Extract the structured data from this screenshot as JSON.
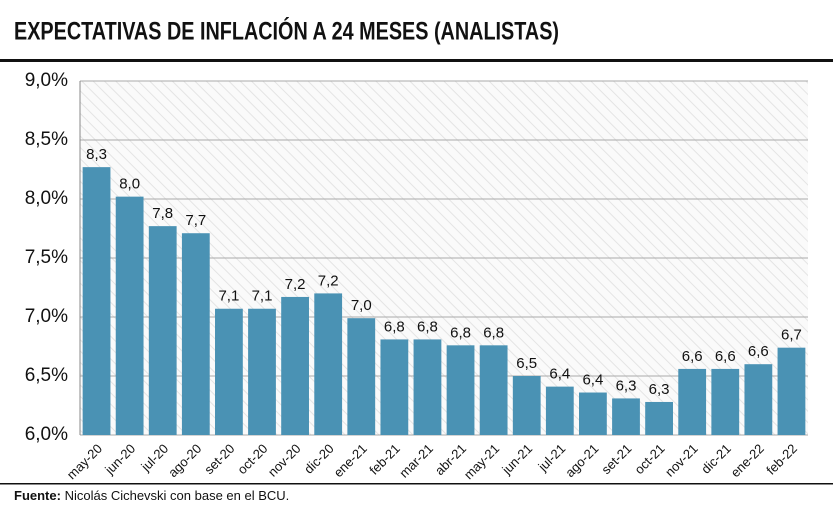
{
  "chart_data": {
    "type": "bar",
    "title": "EXPECTATIVAS DE INFLACIÓN A 24 MESES (ANALISTAS)",
    "categories": [
      "may-20",
      "jun-20",
      "jul-20",
      "ago-20",
      "set-20",
      "oct-20",
      "nov-20",
      "dic-20",
      "ene-21",
      "feb-21",
      "mar-21",
      "abr-21",
      "may-21",
      "jun-21",
      "jul-21",
      "ago-21",
      "set-21",
      "oct-21",
      "nov-21",
      "dic-21",
      "ene-22",
      "feb-22"
    ],
    "values": [
      8.27,
      8.02,
      7.77,
      7.71,
      7.07,
      7.07,
      7.17,
      7.2,
      6.99,
      6.81,
      6.81,
      6.76,
      6.76,
      6.5,
      6.41,
      6.36,
      6.31,
      6.28,
      6.56,
      6.56,
      6.6,
      6.74
    ],
    "value_labels": [
      "8,3",
      "8,0",
      "7,8",
      "7,7",
      "7,1",
      "7,1",
      "7,2",
      "7,2",
      "7,0",
      "6,8",
      "6,8",
      "6,8",
      "6,8",
      "6,5",
      "6,4",
      "6,4",
      "6,3",
      "6,3",
      "6,6",
      "6,6",
      "6,6",
      "6,7"
    ],
    "color": "#4a92b4",
    "ylim": [
      6.0,
      9.0
    ],
    "yticks": [
      {
        "value": 6.0,
        "label": "6,0%"
      },
      {
        "value": 6.5,
        "label": "6,5%"
      },
      {
        "value": 7.0,
        "label": "7,0%"
      },
      {
        "value": 7.5,
        "label": "7,5%"
      },
      {
        "value": 8.0,
        "label": "8,0%"
      },
      {
        "value": 8.5,
        "label": "8,5%"
      },
      {
        "value": 9.0,
        "label": "9,0%"
      }
    ],
    "grid": true,
    "source_label": "Fuente:",
    "source": "Nicolás Cichevski con base en el BCU."
  }
}
